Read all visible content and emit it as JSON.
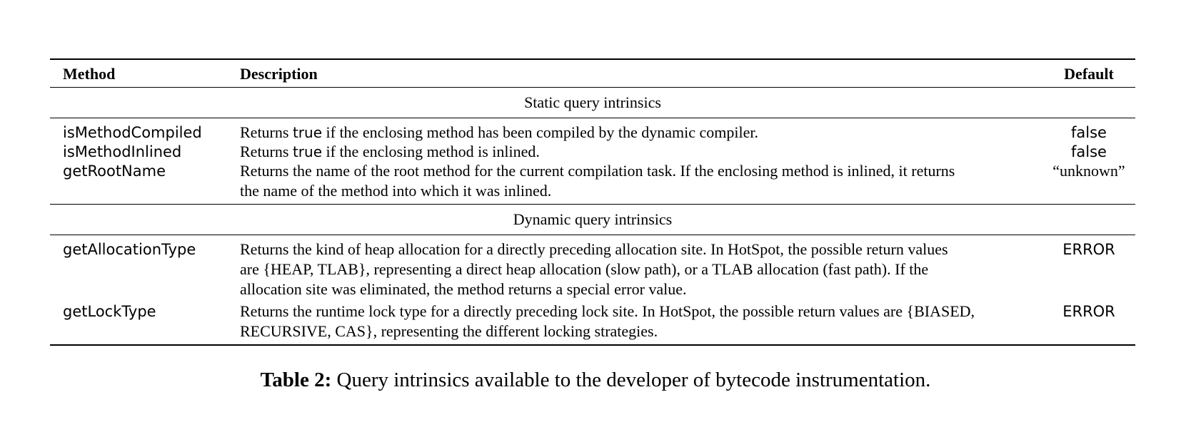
{
  "table": {
    "headers": {
      "method": "Method",
      "description": "Description",
      "default": "Default"
    },
    "sections": [
      {
        "title": "Static query intrinsics",
        "rows": [
          {
            "method": "isMethodCompiled",
            "description_pre": "Returns ",
            "description_code": "true",
            "description_post": " if the enclosing method has been compiled by the dynamic compiler.",
            "default": "false"
          },
          {
            "method": "isMethodInlined",
            "description_pre": "Returns ",
            "description_code": "true",
            "description_post": " if the enclosing method is inlined.",
            "default": "false"
          },
          {
            "method": "getRootName",
            "description_line1": "Returns the name of the root method for the current compilation task. If the enclosing method is inlined, it returns",
            "description_line2": "the name of the method into which it was inlined.",
            "default": "“unknown”"
          }
        ]
      },
      {
        "title": "Dynamic query intrinsics",
        "rows": [
          {
            "method": "getAllocationType",
            "description_line1": "Returns the kind of heap allocation for a directly preceding allocation site. In HotSpot, the possible return values",
            "description_line2": "are {HEAP, TLAB}, representing a direct heap allocation (slow path), or a TLAB allocation (fast path). If the",
            "description_line3": "allocation site was eliminated, the method returns a special error value.",
            "default": "ERROR"
          },
          {
            "method": "getLockType",
            "description_line1": "Returns the runtime lock type for a directly preceding lock site. In HotSpot, the possible return values are {BIASED,",
            "description_line2": "RECURSIVE, CAS}, representing the different locking strategies.",
            "default": "ERROR"
          }
        ]
      }
    ]
  },
  "caption": {
    "label": "Table 2:",
    "text": " Query intrinsics available to the developer of bytecode instrumentation."
  }
}
